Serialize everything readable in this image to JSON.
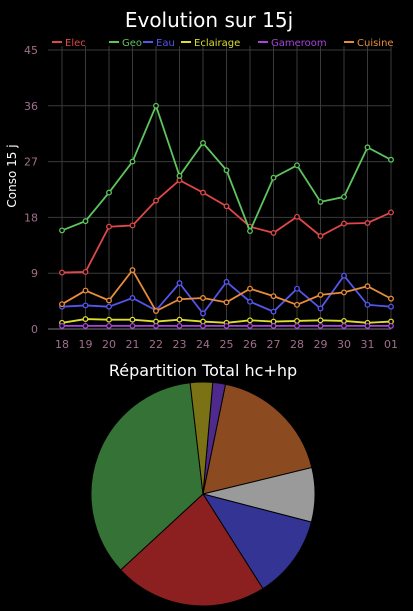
{
  "chart_data": [
    {
      "type": "line",
      "title": "Evolution sur 15j",
      "ylabel": "Conso 15 j",
      "xlabel": "",
      "ylim": [
        0,
        45
      ],
      "yticks": [
        0,
        9,
        18,
        27,
        36,
        45
      ],
      "grid": true,
      "legend_position": "top",
      "categories": [
        "18",
        "19",
        "20",
        "21",
        "22",
        "23",
        "24",
        "25",
        "26",
        "27",
        "28",
        "29",
        "30",
        "31",
        "01"
      ],
      "series": [
        {
          "name": "Elec",
          "color": "#e04848",
          "values": [
            9.1,
            9.2,
            16.5,
            16.7,
            20.7,
            24.0,
            22.0,
            19.8,
            16.5,
            15.5,
            18.1,
            15.0,
            17.0,
            17.1,
            18.8
          ]
        },
        {
          "name": "Geo",
          "color": "#5ec45e",
          "values": [
            15.9,
            17.4,
            22.0,
            27.0,
            36.0,
            24.7,
            30.0,
            25.6,
            15.8,
            24.4,
            26.4,
            20.5,
            21.3,
            29.3,
            27.3
          ]
        },
        {
          "name": "Eau",
          "color": "#5555ee",
          "values": [
            3.6,
            3.8,
            3.6,
            5.0,
            3.0,
            7.4,
            2.5,
            7.6,
            4.4,
            2.8,
            6.5,
            3.3,
            8.6,
            3.9,
            3.6
          ]
        },
        {
          "name": "Eclairage",
          "color": "#dede30",
          "values": [
            1.0,
            1.6,
            1.5,
            1.5,
            1.2,
            1.5,
            1.2,
            1.0,
            1.4,
            1.2,
            1.3,
            1.4,
            1.3,
            1.0,
            1.2
          ]
        },
        {
          "name": "Gameroom",
          "color": "#aa44dd",
          "values": [
            0.5,
            0.5,
            0.5,
            0.5,
            0.5,
            0.5,
            0.5,
            0.5,
            0.5,
            0.5,
            0.5,
            0.5,
            0.5,
            0.5,
            0.5
          ]
        },
        {
          "name": "Cuisine",
          "color": "#e88c3c",
          "values": [
            4.0,
            6.2,
            4.6,
            9.5,
            2.9,
            4.8,
            5.0,
            4.3,
            6.5,
            5.3,
            3.9,
            5.5,
            5.9,
            6.9,
            4.9
          ]
        }
      ]
    },
    {
      "type": "pie",
      "title": "Répartition Total hc+hp",
      "legend": false,
      "slices": [
        {
          "value": 2.0,
          "color": "#4d2a8c"
        },
        {
          "value": 19.5,
          "color": "#8c4a20"
        },
        {
          "value": 8.5,
          "color": "#9a9a9a"
        },
        {
          "value": 13.0,
          "color": "#343494"
        },
        {
          "value": 24.0,
          "color": "#8c2020"
        },
        {
          "value": 38.0,
          "color": "#357235"
        },
        {
          "value": 3.5,
          "color": "#7a7214"
        }
      ]
    }
  ]
}
